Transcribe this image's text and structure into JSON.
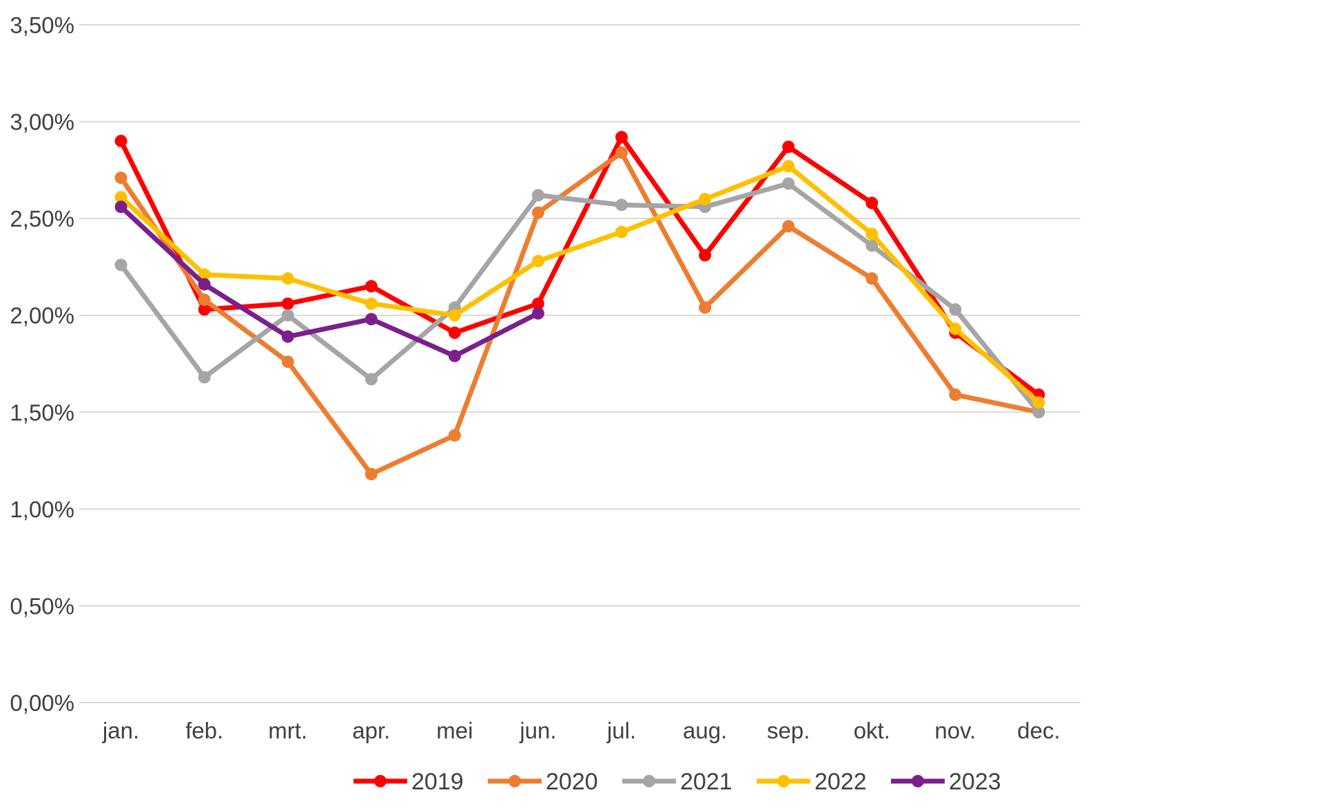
{
  "chart_data": {
    "type": "line",
    "title": "",
    "xlabel": "",
    "ylabel": "",
    "categories": [
      "jan.",
      "feb.",
      "mrt.",
      "apr.",
      "mei",
      "jun.",
      "jul.",
      "aug.",
      "sep.",
      "okt.",
      "nov.",
      "dec."
    ],
    "ylim": [
      0,
      3.5
    ],
    "yticks": [
      0,
      0.5,
      1.0,
      1.5,
      2.0,
      2.5,
      3.0,
      3.5
    ],
    "ytick_labels": [
      "0,00%",
      "0,50%",
      "1,00%",
      "1,50%",
      "2,00%",
      "2,50%",
      "3,00%",
      "3,50%"
    ],
    "grid": true,
    "legend_position": "bottom",
    "series": [
      {
        "name": "2019",
        "color": "#ff0000",
        "values": [
          2.9,
          2.03,
          2.06,
          2.15,
          1.91,
          2.06,
          2.92,
          2.31,
          2.87,
          2.58,
          1.91,
          1.59
        ]
      },
      {
        "name": "2020",
        "color": "#ed7d31",
        "values": [
          2.71,
          2.08,
          1.76,
          1.18,
          1.38,
          2.53,
          2.84,
          2.04,
          2.46,
          2.19,
          1.59,
          1.5
        ]
      },
      {
        "name": "2021",
        "color": "#a5a5a5",
        "values": [
          2.26,
          1.68,
          2.0,
          1.67,
          2.04,
          2.62,
          2.57,
          2.56,
          2.68,
          2.36,
          2.03,
          1.5
        ]
      },
      {
        "name": "2022",
        "color": "#ffc000",
        "values": [
          2.61,
          2.21,
          2.19,
          2.06,
          2.0,
          2.28,
          2.43,
          2.6,
          2.77,
          2.42,
          1.93,
          1.55
        ]
      },
      {
        "name": "2023",
        "color": "#7b1f8c",
        "values": [
          2.56,
          2.16,
          1.89,
          1.98,
          1.79,
          2.01,
          null,
          null,
          null,
          null,
          null,
          null
        ]
      }
    ]
  }
}
